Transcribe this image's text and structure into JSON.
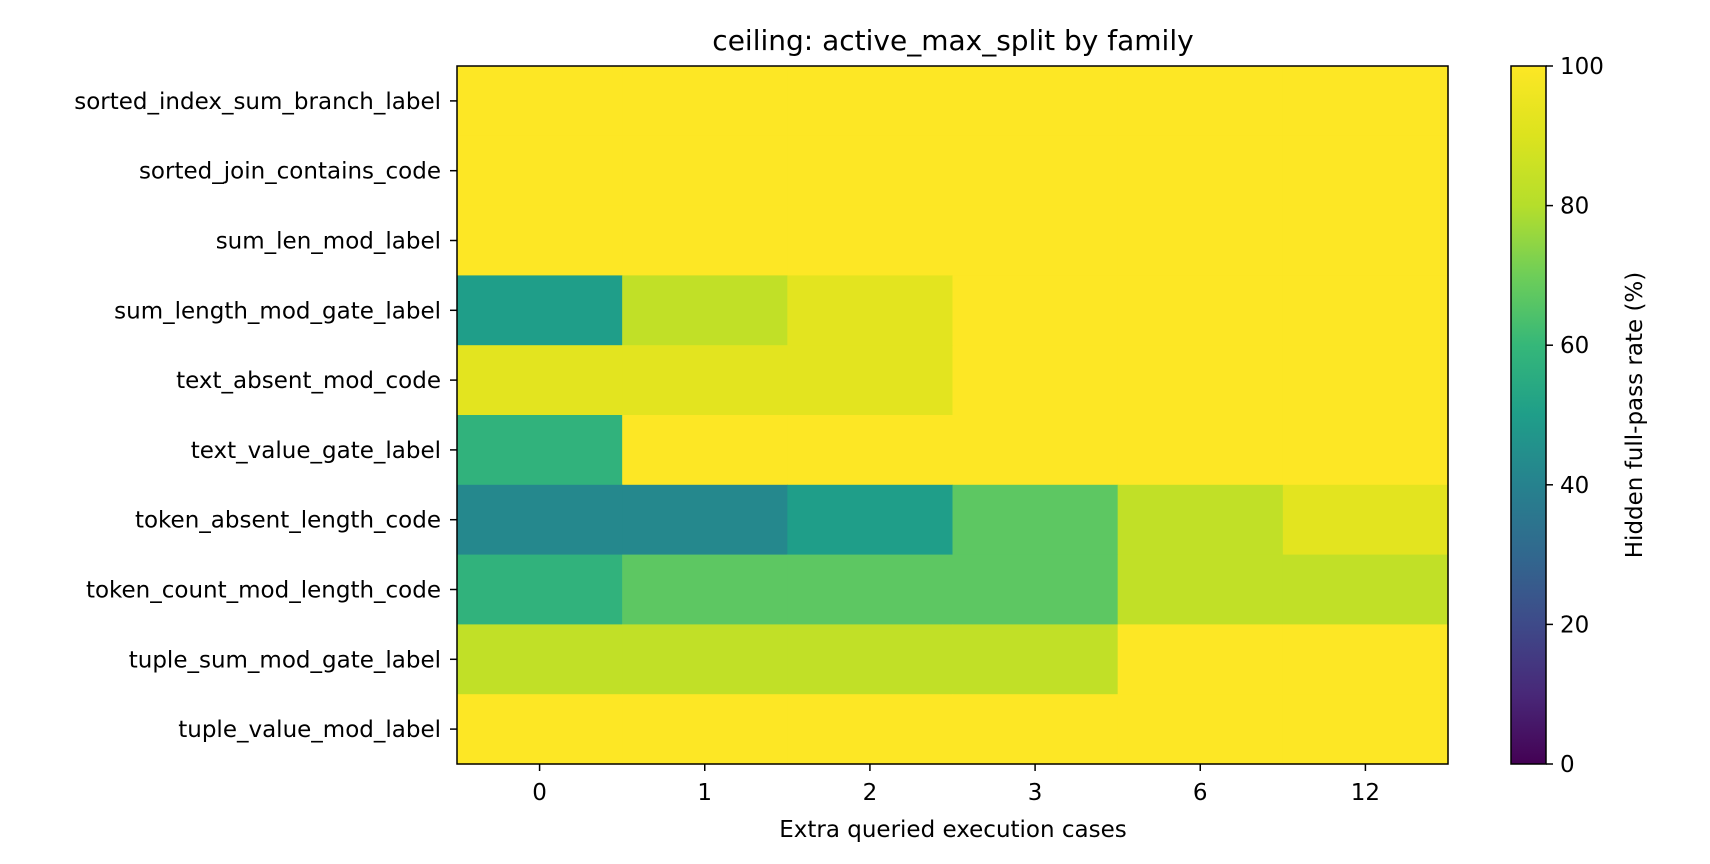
{
  "chart_data": {
    "type": "heatmap",
    "title": "ceiling: active_max_split by family",
    "xlabel": "Extra queried execution cases",
    "ylabel": "",
    "x": [
      "0",
      "1",
      "2",
      "3",
      "6",
      "12"
    ],
    "y": [
      "sorted_index_sum_branch_label",
      "sorted_join_contains_code",
      "sum_len_mod_label",
      "sum_length_mod_gate_label",
      "text_absent_mod_code",
      "text_value_gate_label",
      "token_absent_length_code",
      "token_count_mod_length_code",
      "tuple_sum_mod_gate_label",
      "tuple_value_mod_label"
    ],
    "values": [
      [
        100,
        100,
        100,
        100,
        100,
        100
      ],
      [
        100,
        100,
        100,
        100,
        100,
        100
      ],
      [
        100,
        100,
        100,
        100,
        100,
        100
      ],
      [
        50,
        83,
        92,
        100,
        100,
        100
      ],
      [
        92,
        92,
        92,
        100,
        100,
        100
      ],
      [
        58,
        100,
        100,
        100,
        100,
        100
      ],
      [
        42,
        42,
        50,
        67,
        83,
        92
      ],
      [
        58,
        67,
        67,
        67,
        83,
        83
      ],
      [
        83,
        83,
        83,
        83,
        100,
        100
      ],
      [
        100,
        100,
        100,
        100,
        100,
        100
      ]
    ],
    "colorbar": {
      "label": "Hidden full-pass rate (%)",
      "range": [
        0,
        100
      ],
      "ticks": [
        "0",
        "20",
        "40",
        "60",
        "80",
        "100"
      ],
      "colormap": "viridis"
    }
  }
}
